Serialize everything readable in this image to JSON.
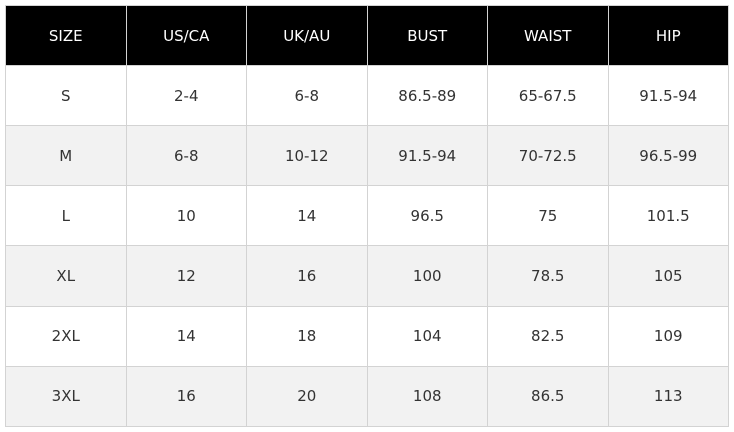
{
  "size_chart": {
    "headers": [
      "SIZE",
      "US/CA",
      "UK/AU",
      "BUST",
      "WAIST",
      "HIP"
    ],
    "rows": [
      [
        "S",
        "2-4",
        "6-8",
        "86.5-89",
        "65-67.5",
        "91.5-94"
      ],
      [
        "M",
        "6-8",
        "10-12",
        "91.5-94",
        "70-72.5",
        "96.5-99"
      ],
      [
        "L",
        "10",
        "14",
        "96.5",
        "75",
        "101.5"
      ],
      [
        "XL",
        "12",
        "16",
        "100",
        "78.5",
        "105"
      ],
      [
        "2XL",
        "14",
        "18",
        "104",
        "82.5",
        "109"
      ],
      [
        "3XL",
        "16",
        "20",
        "108",
        "86.5",
        "113"
      ]
    ]
  },
  "colors": {
    "header_bg": "#000000",
    "header_text": "#ffffff",
    "row_alt_bg": "#f2f2f2",
    "grid_line": "#d3d3d3"
  }
}
